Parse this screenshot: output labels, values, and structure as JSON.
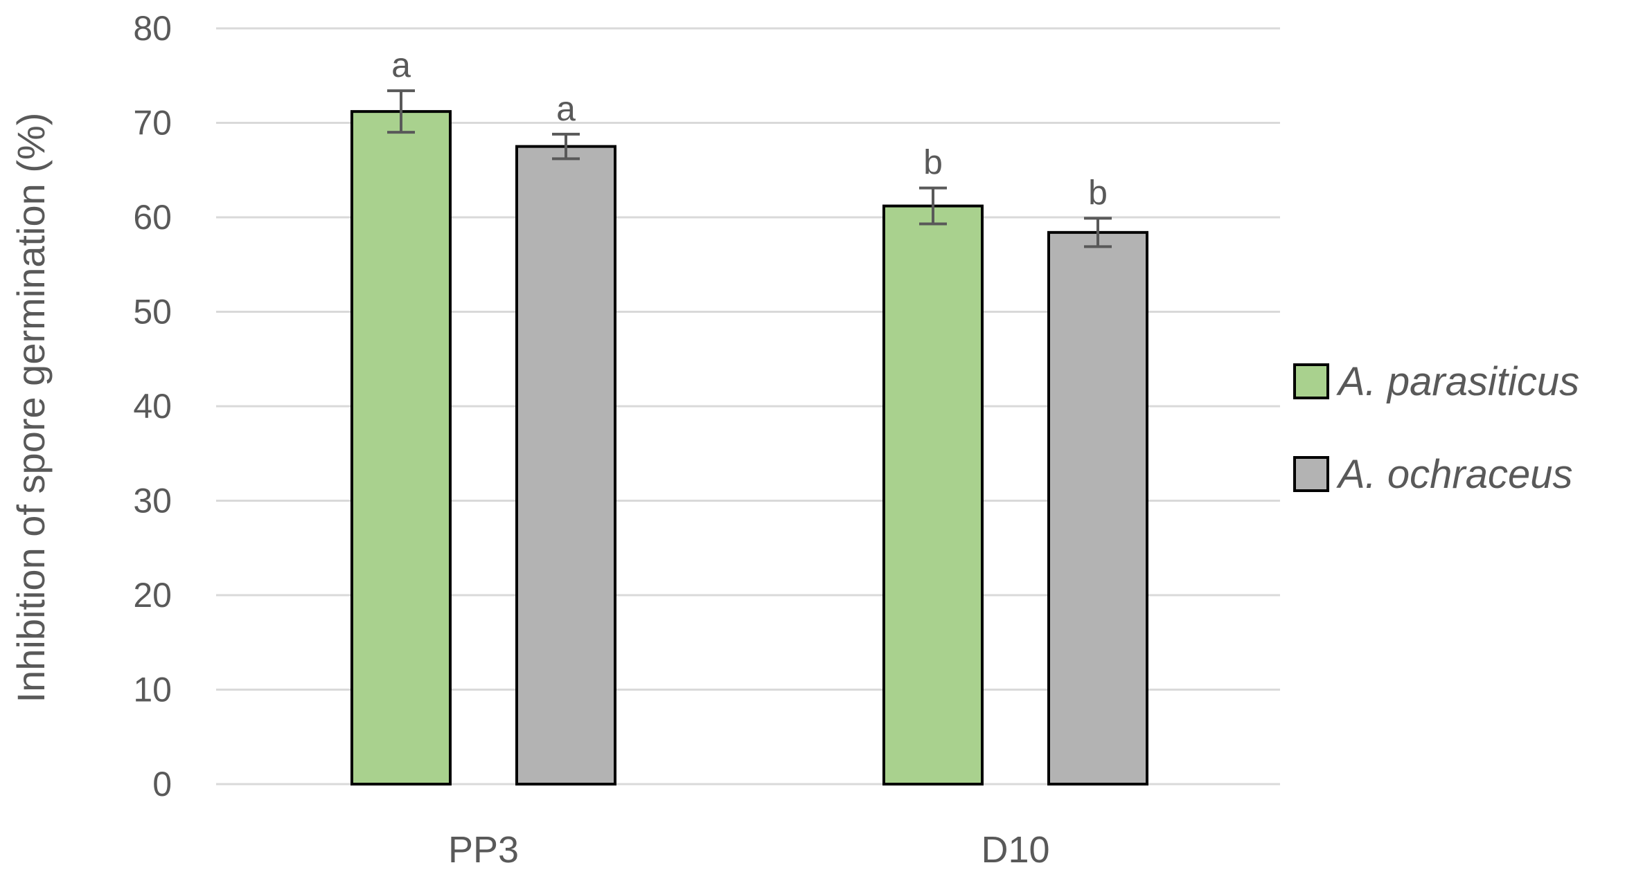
{
  "chart_data": {
    "type": "bar",
    "categories": [
      "PP3",
      "D10"
    ],
    "series": [
      {
        "name": "A. parasiticus",
        "values": [
          71.2,
          61.2
        ],
        "errors": [
          2.2,
          1.9
        ],
        "labels": [
          "a",
          "b"
        ],
        "color": "#a9d18e"
      },
      {
        "name": "A. ochraceus",
        "values": [
          67.5,
          58.4
        ],
        "errors": [
          1.3,
          1.5
        ],
        "labels": [
          "a",
          "b"
        ],
        "color": "#b3b3b3"
      }
    ],
    "ylabel": "Inhibition of spore germination (%)",
    "xlabel": "",
    "ylim": [
      0,
      80
    ],
    "yticks": [
      0,
      10,
      20,
      30,
      40,
      50,
      60,
      70,
      80
    ],
    "grid": true,
    "legend_position": "right",
    "bar_outline_color": "#000000",
    "gridline_color": "#d9d9d9",
    "text_color": "#595959"
  }
}
